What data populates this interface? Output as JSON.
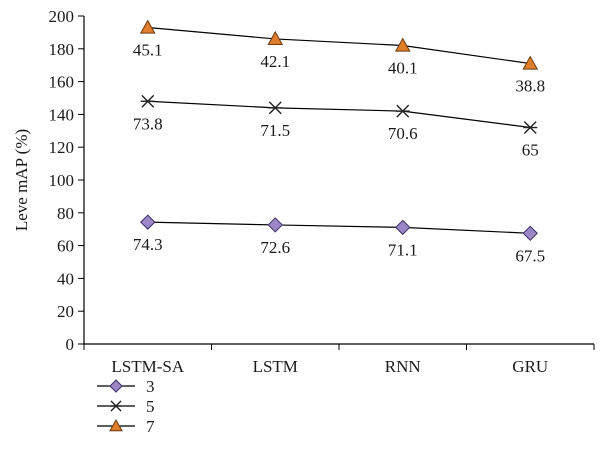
{
  "chart_data": {
    "type": "line",
    "categories": [
      "LSTM-SA",
      "LSTM",
      "RNN",
      "GRU"
    ],
    "series": [
      {
        "name": "3",
        "values": [
          74.3,
          72.6,
          71.1,
          67.5
        ],
        "labels": [
          "74.3",
          "72.6",
          "71.1",
          "67.5"
        ],
        "marker": "diamond",
        "color": "#9b86c6",
        "stroke": "#3d2f66"
      },
      {
        "name": "5",
        "values": [
          148,
          144,
          142,
          132
        ],
        "labels": [
          "73.8",
          "71.5",
          "70.6",
          "65"
        ],
        "marker": "asterisk",
        "color": "#222222",
        "stroke": "#222222"
      },
      {
        "name": "7",
        "values": [
          193,
          186,
          182,
          171
        ],
        "labels": [
          "45.1",
          "42.1",
          "40.1",
          "38.8"
        ],
        "marker": "triangle",
        "color": "#e07d2a",
        "stroke": "#6b3a10"
      }
    ],
    "title": "",
    "xlabel": "",
    "ylabel": "Leve mAP (%)",
    "ylim": [
      0,
      200
    ],
    "yticks": [
      "0",
      "20",
      "40",
      "60",
      "80",
      "100",
      "120",
      "140",
      "160",
      "180",
      "200"
    ],
    "grid": false,
    "legend": "bottom-left",
    "line_color": "#000000"
  }
}
